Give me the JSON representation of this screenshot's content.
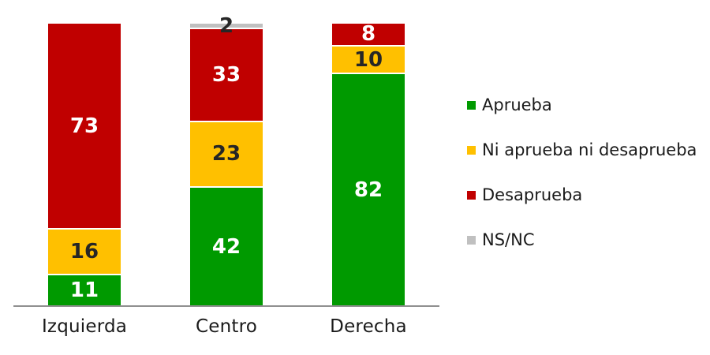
{
  "chart_data": {
    "type": "bar",
    "stacked": true,
    "unit": "percent",
    "title": "",
    "categories": [
      "Izquierda",
      "Centro",
      "Derecha"
    ],
    "series": [
      {
        "name": "Aprueba",
        "color": "#009A00",
        "label_color": "#ffffff",
        "values": [
          11,
          42,
          82
        ]
      },
      {
        "name": "Ni aprueba ni desaprueba",
        "color": "#FFC000",
        "label_color": "#262626",
        "values": [
          16,
          23,
          10
        ]
      },
      {
        "name": "Desaprueba",
        "color": "#C00000",
        "label_color": "#ffffff",
        "values": [
          73,
          33,
          8
        ]
      },
      {
        "name": "NS/NC",
        "color": "#C0C0C0",
        "label_color": "#262626",
        "values": [
          0,
          2,
          0
        ]
      }
    ],
    "ylim": [
      0,
      100
    ],
    "grid": false,
    "data_labels": true,
    "hide_zero_labels": true,
    "legend_position": "right",
    "axis_color": "#8f8f8f",
    "background": "#ffffff",
    "text_color": "#1a1a1a"
  }
}
